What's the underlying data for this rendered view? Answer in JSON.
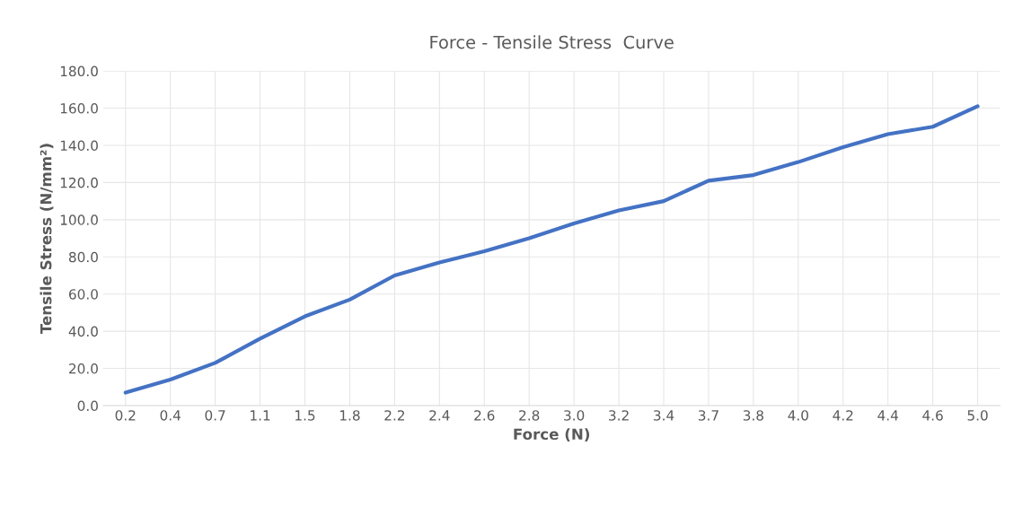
{
  "chart_data": {
    "type": "line",
    "title": "Force - Tensile Stress  Curve",
    "xlabel": "Force (N)",
    "ylabel": "Tensile Stress (N/mm²)",
    "categories": [
      "0.2",
      "0.4",
      "0.7",
      "1.1",
      "1.5",
      "1.8",
      "2.2",
      "2.4",
      "2.6",
      "2.8",
      "3.0",
      "3.2",
      "3.4",
      "3.7",
      "3.8",
      "4.0",
      "4.2",
      "4.4",
      "4.6",
      "5.0"
    ],
    "series": [
      {
        "color": "#4472c4",
        "values": [
          7,
          14,
          23,
          36,
          48,
          57,
          70,
          77,
          83,
          90,
          98,
          105,
          110,
          121,
          124,
          131,
          139,
          146,
          150,
          161
        ]
      }
    ],
    "ylim": [
      0,
      180
    ],
    "yticks": [
      {
        "value": 0,
        "label": "0.0"
      },
      {
        "value": 20,
        "label": "20.0"
      },
      {
        "value": 40,
        "label": "40.0"
      },
      {
        "value": 60,
        "label": "60.0"
      },
      {
        "value": 80,
        "label": "80.0"
      },
      {
        "value": 100,
        "label": "100.0"
      },
      {
        "value": 120,
        "label": "120.0"
      },
      {
        "value": 140,
        "label": "140.0"
      },
      {
        "value": 160,
        "label": "160.0"
      },
      {
        "value": 180,
        "label": "180.0"
      }
    ],
    "grid": true,
    "marker": "none",
    "line_style": "solid",
    "legend": false
  }
}
